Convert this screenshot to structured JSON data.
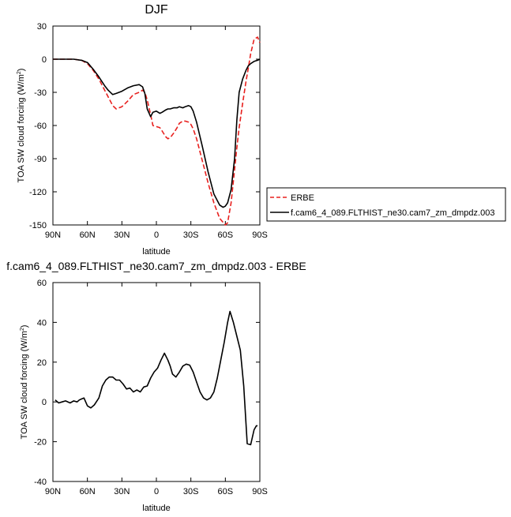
{
  "chart_data": [
    {
      "type": "line",
      "title": "DJF",
      "xlabel": "latitude",
      "ylabel": "TOA SW cloud forcing (W/m",
      "ylabel_sup": "2",
      "ylabel_close": ")",
      "xlim": [
        -90,
        90
      ],
      "ylim": [
        -150,
        30
      ],
      "xticks": [
        -90,
        -60,
        -30,
        0,
        30,
        60,
        90
      ],
      "xtick_labels": [
        "90N",
        "60N",
        "30N",
        "0",
        "30S",
        "60S",
        "90S"
      ],
      "yticks": [
        -150,
        -120,
        -90,
        -60,
        -30,
        0,
        30
      ],
      "ytick_labels": [
        "-150",
        "-120",
        "-90",
        "-60",
        "-30",
        "0",
        "30"
      ],
      "legend_position": "right",
      "series": [
        {
          "name": "ERBE",
          "color": "#e8201e",
          "dash": "dashed",
          "x": [
            -90,
            -80,
            -72,
            -65,
            -60,
            -55,
            -50,
            -45,
            -42,
            -38,
            -35,
            -30,
            -25,
            -20,
            -15,
            -12,
            -10,
            -8,
            -5,
            -3,
            0,
            3,
            5,
            8,
            10,
            12,
            15,
            18,
            20,
            23,
            25,
            28,
            30,
            32,
            35,
            40,
            45,
            50,
            55,
            60,
            62,
            65,
            68,
            70,
            72,
            75,
            78,
            80,
            82,
            85,
            88,
            90
          ],
          "y": [
            0,
            0,
            0,
            -1,
            -4,
            -10,
            -18,
            -28,
            -34,
            -42,
            -45,
            -43,
            -38,
            -32,
            -30,
            -28,
            -30,
            -37,
            -50,
            -60,
            -61,
            -62,
            -65,
            -70,
            -72,
            -71,
            -67,
            -62,
            -58,
            -56,
            -56,
            -57,
            -59,
            -63,
            -72,
            -92,
            -112,
            -130,
            -144,
            -150,
            -148,
            -130,
            -100,
            -80,
            -62,
            -40,
            -20,
            -8,
            5,
            18,
            20,
            15
          ]
        },
        {
          "name": "f.cam6_4_089.FLTHIST_ne30.cam7_zm_dmpdz.003",
          "color": "#000000",
          "dash": "solid",
          "x": [
            -90,
            -80,
            -72,
            -65,
            -60,
            -55,
            -50,
            -45,
            -42,
            -38,
            -35,
            -30,
            -25,
            -20,
            -15,
            -12,
            -10,
            -8,
            -5,
            -3,
            0,
            3,
            5,
            8,
            10,
            12,
            15,
            18,
            20,
            23,
            25,
            28,
            30,
            32,
            35,
            40,
            45,
            50,
            55,
            58,
            60,
            62,
            65,
            68,
            70,
            72,
            75,
            78,
            80,
            82,
            85,
            88,
            90
          ],
          "y": [
            0,
            0,
            0,
            -1,
            -3,
            -9,
            -16,
            -24,
            -28,
            -32,
            -31,
            -29,
            -26,
            -24,
            -23,
            -25,
            -31,
            -45,
            -52,
            -48,
            -47,
            -49,
            -48,
            -46,
            -45,
            -45,
            -44,
            -44,
            -43,
            -44,
            -43,
            -42,
            -43,
            -47,
            -57,
            -79,
            -102,
            -122,
            -132,
            -134,
            -133,
            -130,
            -118,
            -90,
            -55,
            -30,
            -18,
            -10,
            -6,
            -4,
            -2,
            -1,
            0
          ]
        }
      ]
    },
    {
      "type": "line",
      "title": "f.cam6_4_089.FLTHIST_ne30.cam7_zm_dmpdz.003 - ERBE",
      "xlabel": "latitude",
      "ylabel": "TOA SW cloud forcing (W/m",
      "ylabel_sup": "2",
      "ylabel_close": ")",
      "xlim": [
        -90,
        90
      ],
      "ylim": [
        -40,
        60
      ],
      "xticks": [
        -90,
        -60,
        -30,
        0,
        30,
        60,
        90
      ],
      "xtick_labels": [
        "90N",
        "60N",
        "30N",
        "0",
        "30S",
        "60S",
        "90S"
      ],
      "yticks": [
        -40,
        -20,
        0,
        20,
        40,
        60
      ],
      "ytick_labels": [
        "-40",
        "-20",
        "0",
        "20",
        "40",
        "60"
      ],
      "series": [
        {
          "color": "#000000",
          "dash": "solid",
          "x": [
            -88,
            -85,
            -82,
            -79,
            -75,
            -72,
            -69,
            -67,
            -65,
            -63,
            -60,
            -57,
            -54,
            -50,
            -47,
            -44,
            -41,
            -38,
            -35,
            -32,
            -29,
            -26,
            -23,
            -20,
            -17,
            -14,
            -11,
            -8,
            -5,
            -2,
            1,
            4,
            7,
            10,
            12,
            14,
            17,
            20,
            23,
            26,
            29,
            32,
            35,
            38,
            41,
            44,
            47,
            50,
            53,
            56,
            59,
            62,
            64,
            67,
            70,
            73,
            76,
            79,
            82,
            85,
            87,
            88
          ],
          "y": [
            1,
            -0.5,
            0,
            0.5,
            -0.5,
            0.5,
            0,
            1,
            1.5,
            2,
            -2,
            -3,
            -1.5,
            2,
            8,
            11,
            12.5,
            12.5,
            11,
            11,
            9,
            6.5,
            7,
            5,
            6,
            5,
            7.5,
            8,
            12,
            15,
            17,
            21,
            24.5,
            21,
            18,
            14,
            12.5,
            15,
            18,
            19,
            18.5,
            15,
            10,
            5,
            2,
            1,
            2,
            5,
            12,
            21,
            30,
            40,
            45.5,
            40,
            33,
            26,
            8,
            -21,
            -21.5,
            -14,
            -12,
            -12
          ]
        }
      ]
    }
  ]
}
